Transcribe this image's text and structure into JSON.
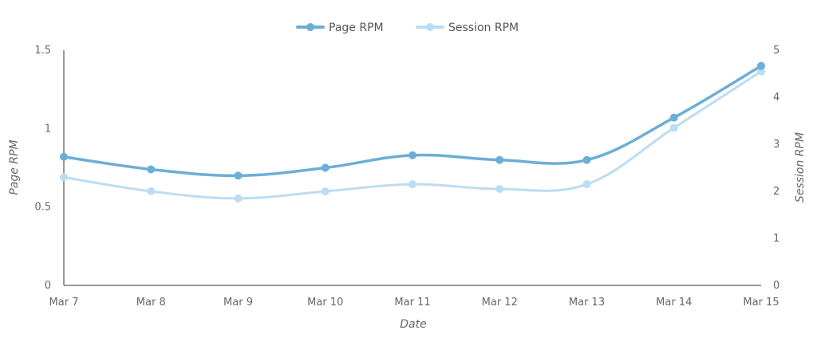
{
  "chart_data": {
    "type": "line",
    "title": "",
    "xlabel": "Date",
    "ylabel_left": "Page RPM",
    "ylabel_right": "Session RPM",
    "x": [
      "Mar 7",
      "Mar 8",
      "Mar 9",
      "Mar 10",
      "Mar 11",
      "Mar 12",
      "Mar 13",
      "Mar 14",
      "Mar 15"
    ],
    "ylim_left": [
      0,
      1.5
    ],
    "ylim_right": [
      0,
      5
    ],
    "yticks_left": [
      "0",
      "0.5",
      "1",
      "1.5"
    ],
    "yticks_right": [
      "0",
      "1",
      "2",
      "3",
      "4",
      "5"
    ],
    "legend_position": "top-center",
    "grid": false,
    "series": [
      {
        "name": "Page RPM",
        "axis": "left",
        "color": "#6baed6",
        "values": [
          0.82,
          0.74,
          0.7,
          0.75,
          0.83,
          0.8,
          0.8,
          1.07,
          1.4
        ]
      },
      {
        "name": "Session RPM",
        "axis": "right",
        "color": "#bcdcf4",
        "values": [
          2.3,
          2.0,
          1.85,
          2.0,
          2.15,
          2.05,
          2.15,
          3.35,
          4.55
        ]
      }
    ]
  }
}
